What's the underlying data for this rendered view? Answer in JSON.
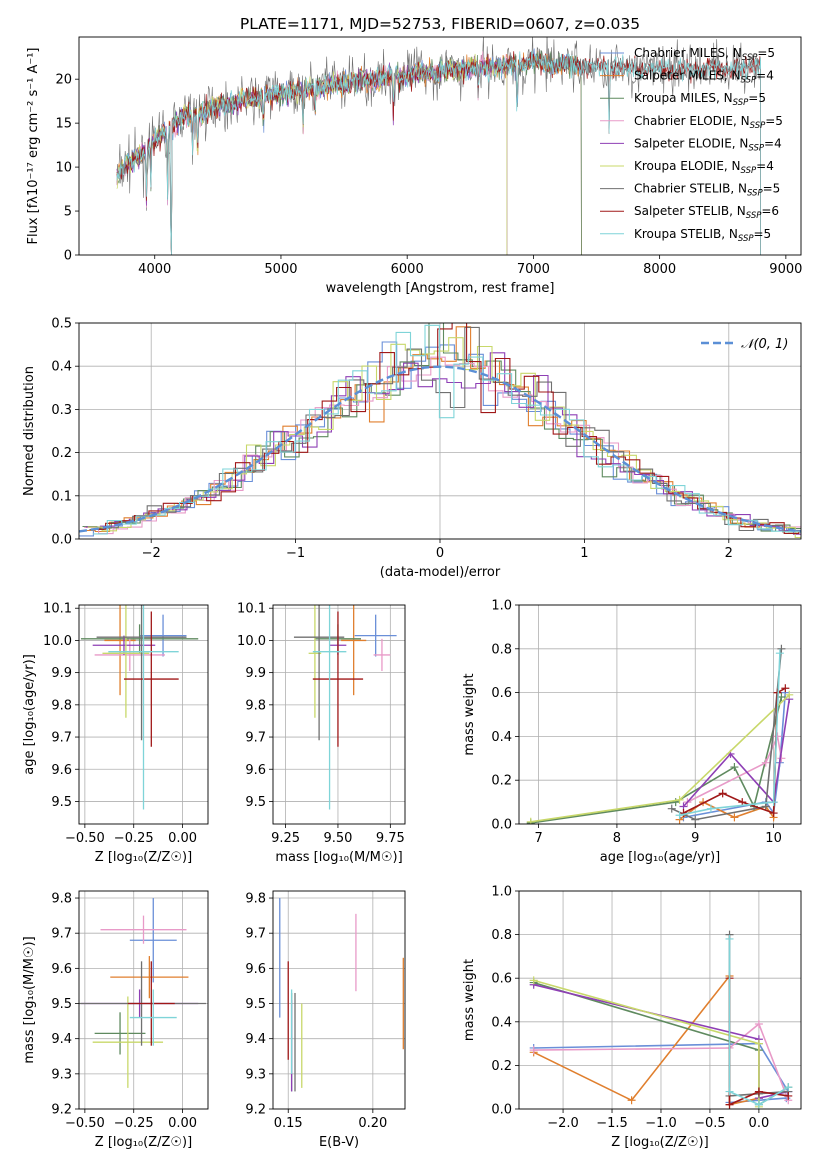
{
  "title": "PLATE=1171, MJD=52753, FIBERID=0607, z=0.035",
  "colors": [
    "#6a8fd8",
    "#e07f2e",
    "#5f8a5f",
    "#e89ac8",
    "#8e3fb5",
    "#c8d86a",
    "#707070",
    "#a01818",
    "#7fd4d8"
  ],
  "chart_data": [
    {
      "id": "spectrum",
      "type": "line",
      "title": "PLATE=1171, MJD=52753, FIBERID=0607, z=0.035",
      "xlabel": "wavelength [Angstrom, rest frame]",
      "ylabel": "Flux [fλ10⁻¹⁷ erg cm⁻² s⁻¹ A⁻¹]",
      "xlim": [
        3400,
        9120
      ],
      "ylim": [
        0,
        24.8
      ],
      "xticks": [
        4000,
        5000,
        6000,
        7000,
        8000,
        9000
      ],
      "yticks": [
        0,
        5,
        10,
        15,
        20
      ],
      "legend": "top-right",
      "continuum": {
        "x": [
          3700,
          4000,
          4200,
          4500,
          5000,
          5500,
          6000,
          6500,
          7000,
          7500,
          8000,
          8500,
          8800
        ],
        "y": [
          9,
          13,
          15.5,
          17,
          18.5,
          19.5,
          20.5,
          21.3,
          21.8,
          21.5,
          21.0,
          21.3,
          21.5
        ]
      },
      "series": [
        {
          "name": "Chabrier MILES, N_SSP=5",
          "xmax": 7380
        },
        {
          "name": "Salpeter MILES, N_SSP=4",
          "xmax": 7380
        },
        {
          "name": "Kroupa MILES, N_SSP=5",
          "xmax": 7380
        },
        {
          "name": "Chabrier ELODIE, N_SSP=5",
          "xmax": 6790
        },
        {
          "name": "Salpeter ELODIE, N_SSP=4",
          "xmax": 6790
        },
        {
          "name": "Kroupa ELODIE, N_SSP=4",
          "xmax": 6790
        },
        {
          "name": "Chabrier STELIB, N_SSP=5",
          "xmax": 8800
        },
        {
          "name": "Salpeter STELIB, N_SSP=6",
          "xmax": 8800
        },
        {
          "name": "Kroupa STELIB, N_SSP=5",
          "xmax": 8800
        }
      ],
      "data_series": {
        "name": "data",
        "xmax": 8800
      }
    },
    {
      "id": "residuals",
      "type": "bar",
      "xlabel": "(data-model)/error",
      "ylabel": "Normed distribution",
      "xlim": [
        -2.5,
        2.5
      ],
      "ylim": [
        0,
        0.5
      ],
      "xticks": [
        -2,
        -1,
        0,
        1,
        2
      ],
      "yticks": [
        0.0,
        0.1,
        0.2,
        0.3,
        0.4,
        0.5
      ],
      "bin_width": 0.1,
      "bin_start": -2.5,
      "gaussian": {
        "label": "𝒩(0, 1)",
        "mean": 0,
        "sigma": 1
      },
      "legend": "top-right"
    },
    {
      "id": "age_vs_Z",
      "type": "scatter",
      "xlabel": "Z [log₁₀(Z/Z☉)]",
      "ylabel": "age  [log₁₀(age/yr)]",
      "xlim": [
        -0.53,
        0.13
      ],
      "ylim": [
        9.43,
        10.11
      ],
      "xticks": [
        -0.5,
        -0.25,
        0.0
      ],
      "xticklabels": [
        "−0.50",
        "−0.25",
        "0.00"
      ],
      "yticks": [
        9.5,
        9.6,
        9.7,
        9.8,
        9.9,
        10.0,
        10.1
      ],
      "points": [
        {
          "x": -0.1,
          "xerr": 0.12,
          "y": 10.015,
          "yerr": 0.065
        },
        {
          "x": -0.32,
          "xerr": 0.08,
          "y": 10.0,
          "yerr": 0.17
        },
        {
          "x": -0.22,
          "xerr": 0.3,
          "y": 10.005,
          "yerr": 0.045
        },
        {
          "x": -0.27,
          "xerr": 0.18,
          "y": 9.955,
          "yerr": 0.05
        },
        {
          "x": -0.3,
          "xerr": 0.16,
          "y": 9.985,
          "yerr": 0.03
        },
        {
          "x": -0.29,
          "xerr": 0.12,
          "y": 9.96,
          "yerr": 0.2
        },
        {
          "x": -0.21,
          "xerr": 0.23,
          "y": 10.01,
          "yerr": 0.32
        },
        {
          "x": -0.16,
          "xerr": 0.14,
          "y": 9.88,
          "yerr": 0.21
        },
        {
          "x": -0.2,
          "xerr": 0.18,
          "y": 9.965,
          "yerr": 0.49
        }
      ]
    },
    {
      "id": "age_vs_mass",
      "type": "scatter",
      "xlabel": "mass [log₁₀(M/M☉)]",
      "ylabel": "",
      "xlim": [
        9.19,
        9.82
      ],
      "ylim": [
        9.43,
        10.11
      ],
      "xticks": [
        9.25,
        9.5,
        9.75
      ],
      "xticklabels": [
        "9.25",
        "9.50",
        "9.75"
      ],
      "yticks": [
        9.5,
        9.6,
        9.7,
        9.8,
        9.9,
        10.0,
        10.1
      ],
      "points": [
        {
          "x": 9.68,
          "xerr": 0.1,
          "y": 10.015,
          "yerr": 0.065
        },
        {
          "x": 9.575,
          "xerr": 0.06,
          "y": 10.0,
          "yerr": 0.17
        },
        {
          "x": 9.5,
          "xerr": 0.11,
          "y": 10.005,
          "yerr": 0.045
        },
        {
          "x": 9.71,
          "xerr": 0.04,
          "y": 9.955,
          "yerr": 0.05
        },
        {
          "x": 9.5,
          "xerr": 0.04,
          "y": 9.985,
          "yerr": 0.03
        },
        {
          "x": 9.39,
          "xerr": 0.03,
          "y": 9.96,
          "yerr": 0.2
        },
        {
          "x": 9.41,
          "xerr": 0.12,
          "y": 10.01,
          "yerr": 0.32
        },
        {
          "x": 9.5,
          "xerr": 0.12,
          "y": 9.88,
          "yerr": 0.21
        },
        {
          "x": 9.46,
          "xerr": 0.08,
          "y": 9.965,
          "yerr": 0.49
        }
      ]
    },
    {
      "id": "weight_vs_age",
      "type": "line",
      "xlabel": "age  [log₁₀(age/yr)]",
      "ylabel": "mass weight",
      "xlim": [
        6.75,
        10.35
      ],
      "ylim": [
        0,
        1
      ],
      "xticks": [
        7,
        8,
        9,
        10
      ],
      "yticks": [
        0.0,
        0.2,
        0.4,
        0.6,
        0.8,
        1.0
      ],
      "series": [
        {
          "x": [
            8.85,
            9.9,
            10.0,
            10.08,
            10.15
          ],
          "y": [
            0.03,
            0.1,
            0.05,
            0.28,
            0.6
          ]
        },
        {
          "x": [
            8.8,
            9.1,
            9.5,
            9.9,
            10.0,
            10.05
          ],
          "y": [
            0.02,
            0.1,
            0.03,
            0.08,
            0.03,
            0.6
          ]
        },
        {
          "x": [
            6.9,
            8.75,
            9.5,
            9.75,
            10.1
          ],
          "y": [
            0.005,
            0.1,
            0.26,
            0.08,
            0.58
          ]
        },
        {
          "x": [
            8.9,
            9.9,
            10.05,
            10.1
          ],
          "y": [
            0.1,
            0.28,
            0.4,
            0.3
          ]
        },
        {
          "x": [
            8.85,
            9.45,
            10.0,
            10.2
          ],
          "y": [
            0.08,
            0.32,
            0.1,
            0.57
          ]
        },
        {
          "x": [
            6.9,
            8.8,
            10.2
          ],
          "y": [
            0.01,
            0.11,
            0.59
          ]
        },
        {
          "x": [
            8.7,
            9.0,
            9.9,
            10.1
          ],
          "y": [
            0.07,
            0.02,
            0.08,
            0.8
          ]
        },
        {
          "x": [
            8.85,
            9.35,
            9.6,
            10.0,
            10.05,
            10.15
          ],
          "y": [
            0.05,
            0.14,
            0.1,
            0.05,
            0.6,
            0.62
          ]
        },
        {
          "x": [
            8.8,
            9.2,
            10.0,
            10.08
          ],
          "y": [
            0.04,
            0.07,
            0.1,
            0.78
          ]
        }
      ]
    },
    {
      "id": "mass_vs_Z",
      "type": "scatter",
      "xlabel": "Z [log₁₀(Z/Z☉)]",
      "ylabel": "mass [log₁₀(M/M☉)]",
      "xlim": [
        -0.53,
        0.13
      ],
      "ylim": [
        9.2,
        9.82
      ],
      "xticks": [
        -0.5,
        -0.25,
        0.0
      ],
      "xticklabels": [
        "−0.50",
        "−0.25",
        "0.00"
      ],
      "yticks": [
        9.2,
        9.3,
        9.4,
        9.5,
        9.6,
        9.7,
        9.8
      ],
      "points": [
        {
          "x": -0.15,
          "xerr": 0.12,
          "y": 9.68,
          "yerr": 0.12
        },
        {
          "x": -0.17,
          "xerr": 0.2,
          "y": 9.575,
          "yerr": 0.06
        },
        {
          "x": -0.32,
          "xerr": 0.13,
          "y": 9.415,
          "yerr": 0.06
        },
        {
          "x": -0.2,
          "xerr": 0.22,
          "y": 9.71,
          "yerr": 0.04
        },
        {
          "x": -0.22,
          "xerr": 0.3,
          "y": 9.5,
          "yerr": 0.04
        },
        {
          "x": -0.28,
          "xerr": 0.18,
          "y": 9.39,
          "yerr": 0.13
        },
        {
          "x": -0.21,
          "xerr": 0.33,
          "y": 9.5,
          "yerr": 0.12
        },
        {
          "x": -0.16,
          "xerr": 0.12,
          "y": 9.5,
          "yerr": 0.12
        },
        {
          "x": -0.15,
          "xerr": 0.12,
          "y": 9.46,
          "yerr": 0.08
        }
      ]
    },
    {
      "id": "mass_vs_ebv",
      "type": "scatter",
      "xlabel": "E(B-V)",
      "ylabel": "",
      "xlim": [
        0.141,
        0.219
      ],
      "ylim": [
        9.2,
        9.82
      ],
      "xticks": [
        0.15,
        0.2
      ],
      "xticklabels": [
        "0.15",
        "0.20"
      ],
      "yticks": [
        9.2,
        9.3,
        9.4,
        9.5,
        9.6,
        9.7,
        9.8
      ],
      "points": [
        {
          "x": 0.145,
          "y": 9.63,
          "yerr": 0.17
        },
        {
          "x": 0.218,
          "y": 9.5,
          "yerr": 0.13
        },
        {
          "x": 0.152,
          "y": 9.39,
          "yerr": 0.14
        },
        {
          "x": 0.19,
          "y": 9.645,
          "yerr": 0.11
        },
        {
          "x": 0.152,
          "y": 9.38,
          "yerr": 0.13
        },
        {
          "x": 0.158,
          "y": 9.38,
          "yerr": 0.12
        },
        {
          "x": 0.154,
          "y": 9.39,
          "yerr": 0.14
        },
        {
          "x": 0.15,
          "y": 9.48,
          "yerr": 0.14
        },
        {
          "x": 0.152,
          "y": 9.42,
          "yerr": 0.12
        }
      ]
    },
    {
      "id": "weight_vs_Z",
      "type": "line",
      "xlabel": "Z [log₁₀(Z/Z☉)]",
      "ylabel": "mass weight",
      "xlim": [
        -2.45,
        0.43
      ],
      "ylim": [
        0,
        1
      ],
      "xticks": [
        -2.0,
        -1.5,
        -1.0,
        -0.5,
        0.0
      ],
      "xticklabels": [
        "−2.0",
        "−1.5",
        "−1.0",
        "−0.5",
        "0.0"
      ],
      "yticks": [
        0.0,
        0.2,
        0.4,
        0.6,
        0.8,
        1.0
      ],
      "series": [
        {
          "x": [
            -2.3,
            0.0,
            0.3,
            0.28,
            -0.3
          ],
          "y": [
            0.28,
            0.3,
            0.08,
            0.05,
            0.03
          ]
        },
        {
          "x": [
            -2.3,
            -1.3,
            -0.3,
            -0.3,
            0.0
          ],
          "y": [
            0.26,
            0.04,
            0.61,
            0.02,
            0.05
          ]
        },
        {
          "x": [
            -2.3,
            0.0,
            0.0,
            0.3
          ],
          "y": [
            0.58,
            0.27,
            0.02,
            0.1
          ]
        },
        {
          "x": [
            -2.3,
            -0.3,
            0.0,
            0.3
          ],
          "y": [
            0.27,
            0.28,
            0.39,
            0.04
          ]
        },
        {
          "x": [
            -2.3,
            0.0,
            0.0,
            0.3
          ],
          "y": [
            0.57,
            0.32,
            0.05,
            0.08
          ]
        },
        {
          "x": [
            -2.3,
            0.0,
            0.0
          ],
          "y": [
            0.59,
            0.3,
            0.01
          ]
        },
        {
          "x": [
            -0.3,
            -0.3,
            0.0,
            0.3
          ],
          "y": [
            0.8,
            0.06,
            0.07,
            0.08
          ]
        },
        {
          "x": [
            -0.3,
            -0.3,
            0.0,
            0.3
          ],
          "y": [
            0.6,
            0.02,
            0.08,
            0.06
          ]
        },
        {
          "x": [
            -0.3,
            -0.3,
            0.0,
            0.3
          ],
          "y": [
            0.78,
            0.08,
            0.02,
            0.1
          ]
        }
      ]
    }
  ]
}
